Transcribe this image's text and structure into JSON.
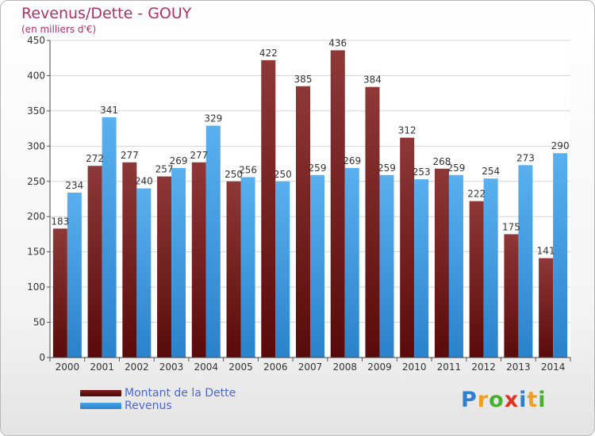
{
  "chart_data": {
    "type": "bar",
    "title": "Revenus/Dette - GOUY",
    "subtitle": "(en milliers d'€)",
    "xlabel": "",
    "ylabel": "",
    "ylim": [
      0,
      450
    ],
    "yticks": [
      0,
      50,
      100,
      150,
      200,
      250,
      300,
      350,
      400,
      450
    ],
    "grid": true,
    "legend_position": "bottom-left",
    "categories": [
      "2000",
      "2001",
      "2002",
      "2003",
      "2004",
      "2005",
      "2006",
      "2007",
      "2008",
      "2009",
      "2010",
      "2011",
      "2012",
      "2013",
      "2014"
    ],
    "series": [
      {
        "name": "Montant de la Dette",
        "color": "#7b1f1f",
        "values": [
          183,
          272,
          277,
          257,
          277,
          250,
          422,
          385,
          436,
          384,
          312,
          268,
          222,
          175,
          141
        ]
      },
      {
        "name": "Revenus",
        "color": "#4aa3e6",
        "values": [
          234,
          341,
          240,
          269,
          329,
          256,
          250,
          259,
          269,
          259,
          253,
          259,
          254,
          273,
          290
        ]
      }
    ]
  },
  "logo": {
    "letters": [
      "P",
      "r",
      "o",
      "x",
      "i",
      "t",
      "i"
    ],
    "colors": [
      "#2f7fd0",
      "#f0a020",
      "#48b030",
      "#e03020",
      "#2f7fd0",
      "#f0a020",
      "#48b030"
    ]
  }
}
